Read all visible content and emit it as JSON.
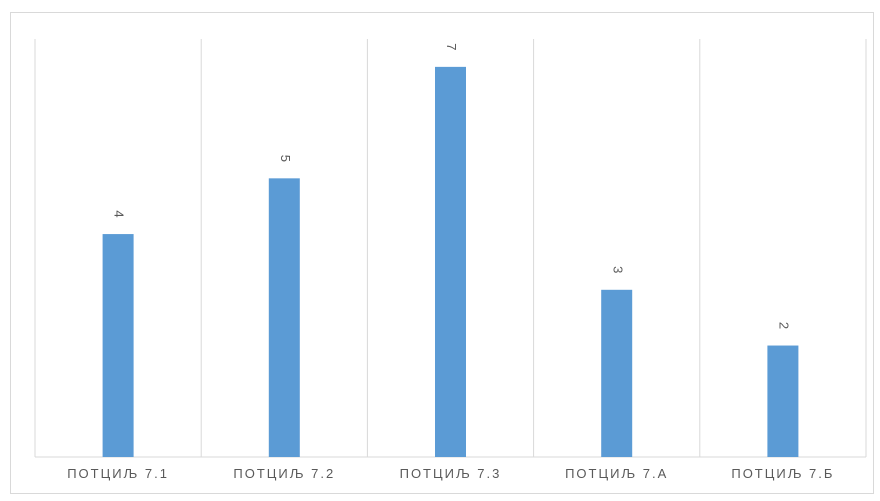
{
  "chart_data": {
    "type": "bar",
    "categories": [
      "ПОТЦИЉ 7.1",
      "ПОТЦИЉ 7.2",
      "ПОТЦИЉ 7.3",
      "ПОТЦИЉ 7.А",
      "ПОТЦИЉ 7.Б"
    ],
    "values": [
      4,
      5,
      7,
      3,
      2
    ],
    "data_labels": [
      "4",
      "5",
      "7",
      "3",
      "2"
    ],
    "title": "",
    "xlabel": "",
    "ylabel": "",
    "ylim": [
      0,
      7.5
    ],
    "grid": "vertical category separators",
    "legend": "none",
    "colors": {
      "bar": "#5b9bd5",
      "grid": "#d9d9d9",
      "text": "#595959",
      "frame": "#d9d9d9"
    }
  }
}
